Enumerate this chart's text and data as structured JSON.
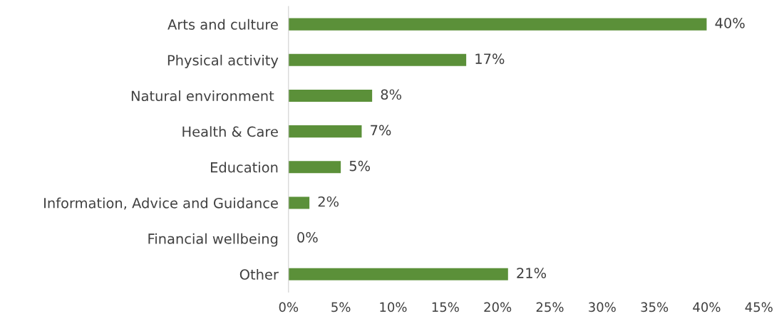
{
  "chart_data": {
    "type": "bar",
    "orientation": "horizontal",
    "categories": [
      "Arts and culture",
      "Physical activity",
      "Natural environment ",
      "Health & Care",
      "Education",
      "Information, Advice and Guidance",
      "Financial wellbeing",
      "Other"
    ],
    "values": [
      40,
      17,
      8,
      7,
      5,
      2,
      0,
      21
    ],
    "value_labels": [
      "40%",
      "17%",
      "8%",
      "7%",
      "5%",
      "2%",
      "0%",
      "21%"
    ],
    "color": "#5b9039",
    "xlim": [
      0,
      45
    ],
    "xticks": [
      {
        "value": 0,
        "label": "0%"
      },
      {
        "value": 5,
        "label": "5%"
      },
      {
        "value": 10,
        "label": "10%"
      },
      {
        "value": 15,
        "label": "15%"
      },
      {
        "value": 20,
        "label": "20%"
      },
      {
        "value": 25,
        "label": "25%"
      },
      {
        "value": 30,
        "label": "30%"
      },
      {
        "value": 35,
        "label": "35%"
      },
      {
        "value": 40,
        "label": "40%"
      },
      {
        "value": 45,
        "label": "45%"
      }
    ],
    "grid": false,
    "legend": false
  }
}
